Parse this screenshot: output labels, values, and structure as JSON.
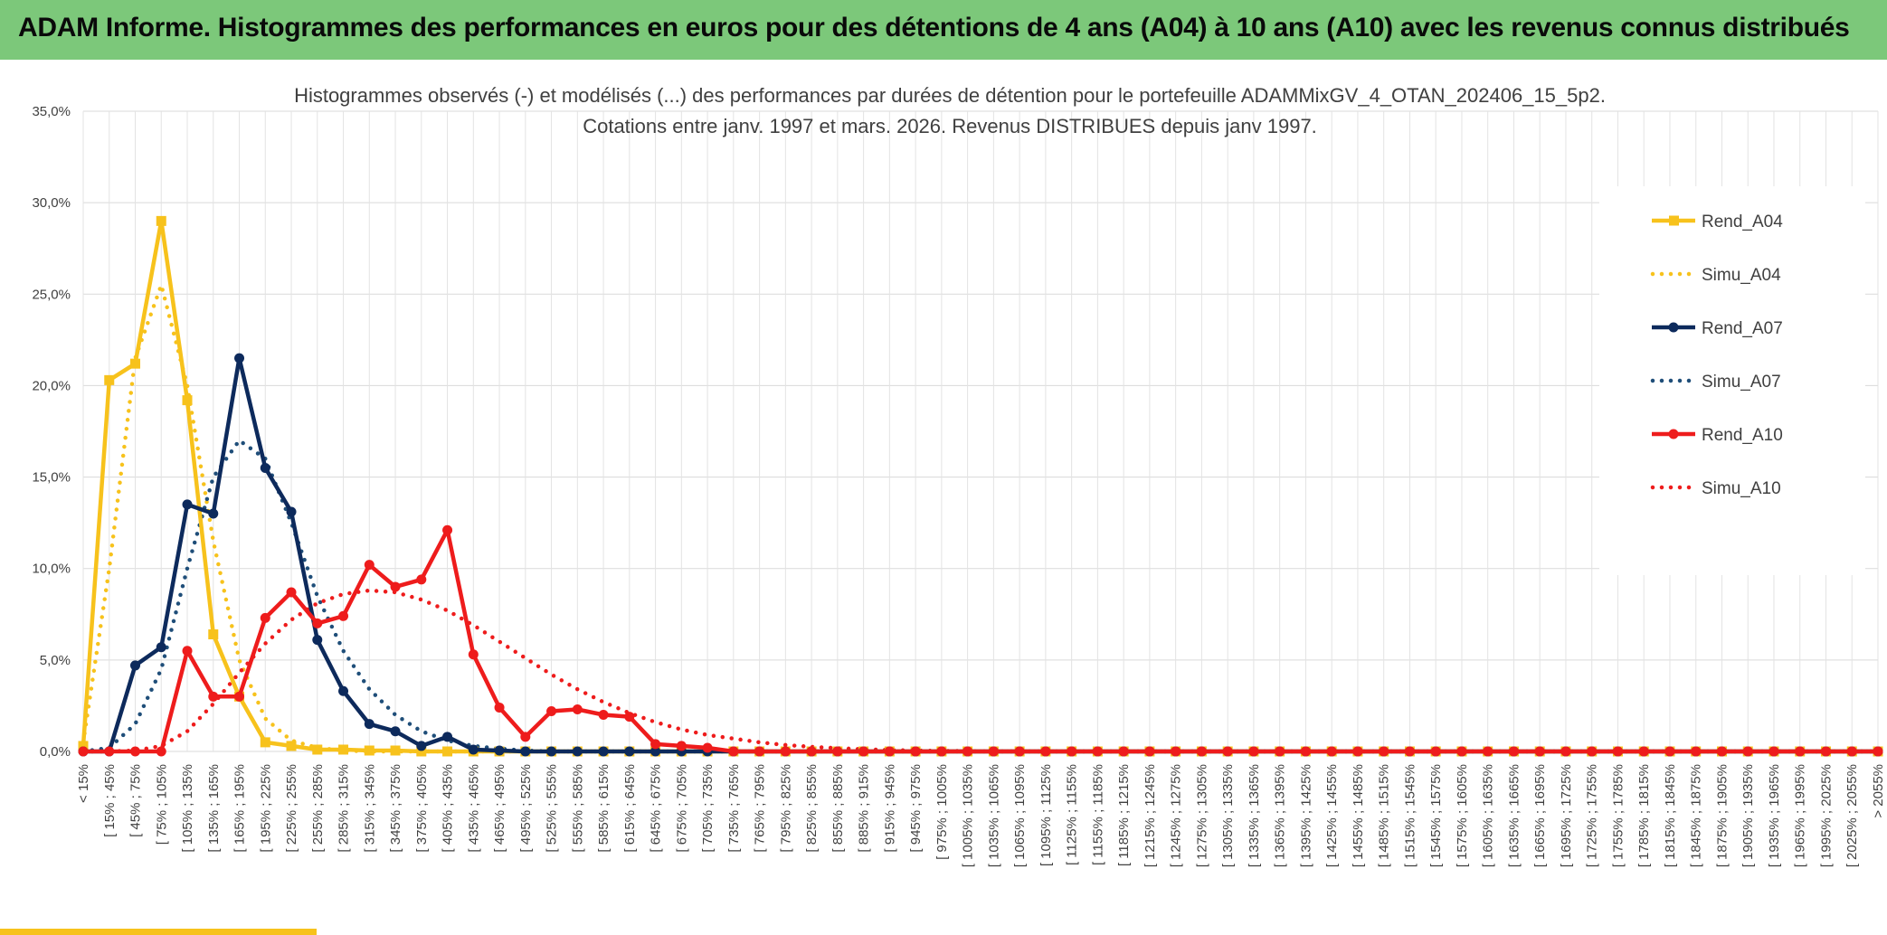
{
  "header": {
    "title": "ADAM Informe. Histogrammes des performances en euros pour des détentions de 4 ans (A04) à 10 ans (A10) avec les revenus connus distribués"
  },
  "chart_data": {
    "type": "line",
    "title": "Histogrammes observés (-) et modélisés (...) des performances par durées de détention pour le portefeuille ADAMMixGV_4_OTAN_202406_15_5p2.",
    "subtitle": "Cotations entre janv. 1997 et mars. 2026. Revenus DISTRIBUES depuis janv 1997.",
    "ylim": [
      0,
      35
    ],
    "yticks": [
      "0,0%",
      "5,0%",
      "10,0%",
      "15,0%",
      "20,0%",
      "25,0%",
      "30,0%",
      "35,0%"
    ],
    "grid": true,
    "legend_position": "right",
    "categories": [
      "< 15%",
      "[ 15% ; 45%",
      "[ 45% ; 75%",
      "[ 75% ; 105%",
      "[ 105% ; 135%",
      "[ 135% ; 165%",
      "[ 165% ; 195%",
      "[ 195% ; 225%",
      "[ 225% ; 255%",
      "[ 255% ; 285%",
      "[ 285% ; 315%",
      "[ 315% ; 345%",
      "[ 345% ; 375%",
      "[ 375% ; 405%",
      "[ 405% ; 435%",
      "[ 435% ; 465%",
      "[ 465% ; 495%",
      "[ 495% ; 525%",
      "[ 525% ; 555%",
      "[ 555% ; 585%",
      "[ 585% ; 615%",
      "[ 615% ; 645%",
      "[ 645% ; 675%",
      "[ 675% ; 705%",
      "[ 705% ; 735%",
      "[ 735% ; 765%",
      "[ 765% ; 795%",
      "[ 795% ; 825%",
      "[ 825% ; 855%",
      "[ 855% ; 885%",
      "[ 885% ; 915%",
      "[ 915% ; 945%",
      "[ 945% ; 975%",
      "[ 975% ; 1005%",
      "[ 1005% ; 1035%",
      "[ 1035% ; 1065%",
      "[ 1065% ; 1095%",
      "[ 1095% ; 1125%",
      "[ 1125% ; 1155%",
      "[ 1155% ; 1185%",
      "[ 1185% ; 1215%",
      "[ 1215% ; 1245%",
      "[ 1245% ; 1275%",
      "[ 1275% ; 1305%",
      "[ 1305% ; 1335%",
      "[ 1335% ; 1365%",
      "[ 1365% ; 1395%",
      "[ 1395% ; 1425%",
      "[ 1425% ; 1455%",
      "[ 1455% ; 1485%",
      "[ 1485% ; 1515%",
      "[ 1515% ; 1545%",
      "[ 1545% ; 1575%",
      "[ 1575% ; 1605%",
      "[ 1605% ; 1635%",
      "[ 1635% ; 1665%",
      "[ 1665% ; 1695%",
      "[ 1695% ; 1725%",
      "[ 1725% ; 1755%",
      "[ 1755% ; 1785%",
      "[ 1785% ; 1815%",
      "[ 1815% ; 1845%",
      "[ 1845% ; 1875%",
      "[ 1875% ; 1905%",
      "[ 1905% ; 1935%",
      "[ 1935% ; 1965%",
      "[ 1965% ; 1995%",
      "[ 1995% ; 2025%",
      "[ 2025% ; 2055%",
      "> 2055%"
    ],
    "series": [
      {
        "name": "Rend_A04",
        "style": "solid",
        "marker": "square",
        "color": "#f7c21c",
        "values": [
          0.3,
          20.3,
          21.2,
          29.0,
          19.2,
          6.4,
          3.0,
          0.5,
          0.3,
          0.1,
          0.1,
          0.05,
          0.05,
          0.0,
          0.0,
          0,
          0,
          0,
          0,
          0,
          0,
          0,
          0,
          0,
          0,
          0,
          0,
          0,
          0,
          0,
          0,
          0,
          0,
          0,
          0,
          0,
          0,
          0,
          0,
          0,
          0,
          0,
          0,
          0,
          0,
          0,
          0,
          0,
          0,
          0,
          0,
          0,
          0,
          0,
          0,
          0,
          0,
          0,
          0,
          0,
          0,
          0,
          0,
          0,
          0,
          0,
          0,
          0,
          0,
          0
        ]
      },
      {
        "name": "Simu_A04",
        "style": "dotted",
        "color": "#f7c21c",
        "values": [
          0.5,
          10.0,
          21.5,
          25.5,
          20.0,
          11.5,
          5.0,
          1.8,
          0.6,
          0.2,
          0.05,
          0,
          0,
          0,
          0,
          0,
          0,
          0,
          0,
          0,
          0,
          0,
          0,
          0,
          0,
          0,
          0,
          0,
          0,
          0,
          0,
          0,
          0,
          0,
          0,
          0,
          0,
          0,
          0,
          0,
          0,
          0,
          0,
          0,
          0,
          0,
          0,
          0,
          0,
          0,
          0,
          0,
          0,
          0,
          0,
          0,
          0,
          0,
          0,
          0,
          0,
          0,
          0,
          0,
          0,
          0,
          0,
          0,
          0,
          0
        ]
      },
      {
        "name": "Rend_A07",
        "style": "solid",
        "marker": "circle",
        "color": "#0d2a5c",
        "values": [
          0,
          0,
          4.7,
          5.7,
          13.5,
          13.0,
          21.5,
          15.5,
          13.1,
          6.1,
          3.3,
          1.5,
          1.1,
          0.3,
          0.8,
          0.1,
          0.05,
          0,
          0,
          0,
          0,
          0,
          0,
          0,
          0,
          0,
          0,
          0,
          0,
          0,
          0,
          0,
          0,
          0,
          0,
          0,
          0,
          0,
          0,
          0,
          0,
          0,
          0,
          0,
          0,
          0,
          0,
          0,
          0,
          0,
          0,
          0,
          0,
          0,
          0,
          0,
          0,
          0,
          0,
          0,
          0,
          0,
          0,
          0,
          0,
          0,
          0,
          0,
          0,
          0
        ]
      },
      {
        "name": "Simu_A07",
        "style": "dotted",
        "color": "#1f4e79",
        "values": [
          0,
          0.2,
          1.5,
          4.5,
          10.0,
          15.0,
          17.0,
          16.0,
          12.5,
          8.5,
          5.5,
          3.4,
          2.0,
          1.1,
          0.6,
          0.3,
          0.15,
          0.05,
          0,
          0,
          0,
          0,
          0,
          0,
          0,
          0,
          0,
          0,
          0,
          0,
          0,
          0,
          0,
          0,
          0,
          0,
          0,
          0,
          0,
          0,
          0,
          0,
          0,
          0,
          0,
          0,
          0,
          0,
          0,
          0,
          0,
          0,
          0,
          0,
          0,
          0,
          0,
          0,
          0,
          0,
          0,
          0,
          0,
          0,
          0,
          0,
          0,
          0,
          0,
          0
        ]
      },
      {
        "name": "Rend_A10",
        "style": "solid",
        "marker": "circle",
        "color": "#ee1c1c",
        "values": [
          0,
          0,
          0,
          0,
          5.5,
          3.0,
          3.0,
          7.3,
          8.7,
          7.0,
          7.4,
          10.2,
          9.0,
          9.4,
          12.1,
          5.3,
          2.4,
          0.8,
          2.2,
          2.3,
          2.0,
          1.9,
          0.4,
          0.3,
          0.2,
          0,
          0,
          0,
          0,
          0,
          0,
          0,
          0,
          0,
          0,
          0,
          0,
          0,
          0,
          0,
          0,
          0,
          0,
          0,
          0,
          0,
          0,
          0,
          0,
          0,
          0,
          0,
          0,
          0,
          0,
          0,
          0,
          0,
          0,
          0,
          0,
          0,
          0,
          0,
          0,
          0,
          0,
          0,
          0,
          0
        ]
      },
      {
        "name": "Simu_A10",
        "style": "dotted",
        "color": "#ee1c1c",
        "values": [
          0,
          0,
          0.05,
          0.3,
          1.1,
          2.6,
          4.3,
          5.9,
          7.2,
          8.1,
          8.6,
          8.8,
          8.7,
          8.3,
          7.7,
          6.9,
          6.0,
          5.1,
          4.2,
          3.4,
          2.7,
          2.1,
          1.6,
          1.2,
          0.9,
          0.7,
          0.5,
          0.35,
          0.25,
          0.18,
          0.12,
          0.08,
          0.05,
          0.03,
          0.02,
          0,
          0,
          0,
          0,
          0,
          0,
          0,
          0,
          0,
          0,
          0,
          0,
          0,
          0,
          0,
          0,
          0,
          0,
          0,
          0,
          0,
          0,
          0,
          0,
          0,
          0,
          0,
          0,
          0,
          0,
          0,
          0,
          0,
          0,
          0
        ]
      }
    ]
  }
}
